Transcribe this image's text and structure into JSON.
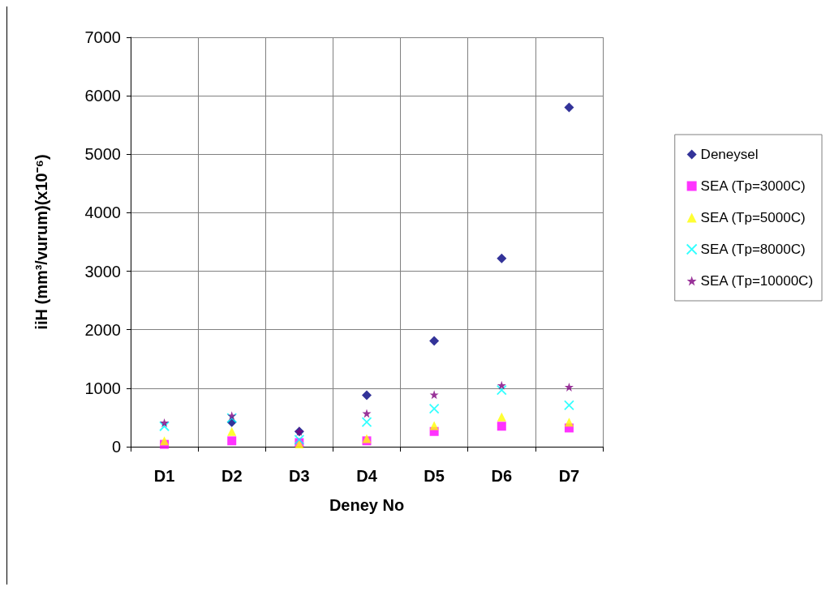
{
  "chart_data": {
    "type": "scatter",
    "xlabel": "Deney No",
    "ylabel": "iiH (mm³/vurum)(x10⁻⁶)",
    "categories": [
      "D1",
      "D2",
      "D3",
      "D4",
      "D5",
      "D6",
      "D7"
    ],
    "series": [
      {
        "name": "Deneysel",
        "color": "#000080",
        "marker": "diamond",
        "values": [
          null,
          420,
          260,
          880,
          1810,
          3220,
          5800
        ]
      },
      {
        "name": "SEA (Tp=3000C)",
        "color": "#ff00ff",
        "marker": "square",
        "values": [
          40,
          100,
          70,
          100,
          260,
          350,
          320
        ]
      },
      {
        "name": "SEA (Tp=5000C)",
        "color": "#ffff00",
        "marker": "triangle",
        "values": [
          100,
          260,
          50,
          140,
          360,
          510,
          420
        ]
      },
      {
        "name": "SEA (Tp=8000C)",
        "color": "#00ffff",
        "marker": "cross",
        "values": [
          350,
          490,
          120,
          420,
          650,
          970,
          710
        ]
      },
      {
        "name": "SEA (Tp=10000C)",
        "color": "#800080",
        "marker": "star",
        "values": [
          410,
          530,
          260,
          570,
          890,
          1050,
          1020
        ]
      }
    ],
    "ylim": [
      0,
      7000
    ],
    "yticks": [
      0,
      1000,
      2000,
      3000,
      4000,
      5000,
      6000,
      7000
    ],
    "grid": true,
    "legend": "right"
  }
}
